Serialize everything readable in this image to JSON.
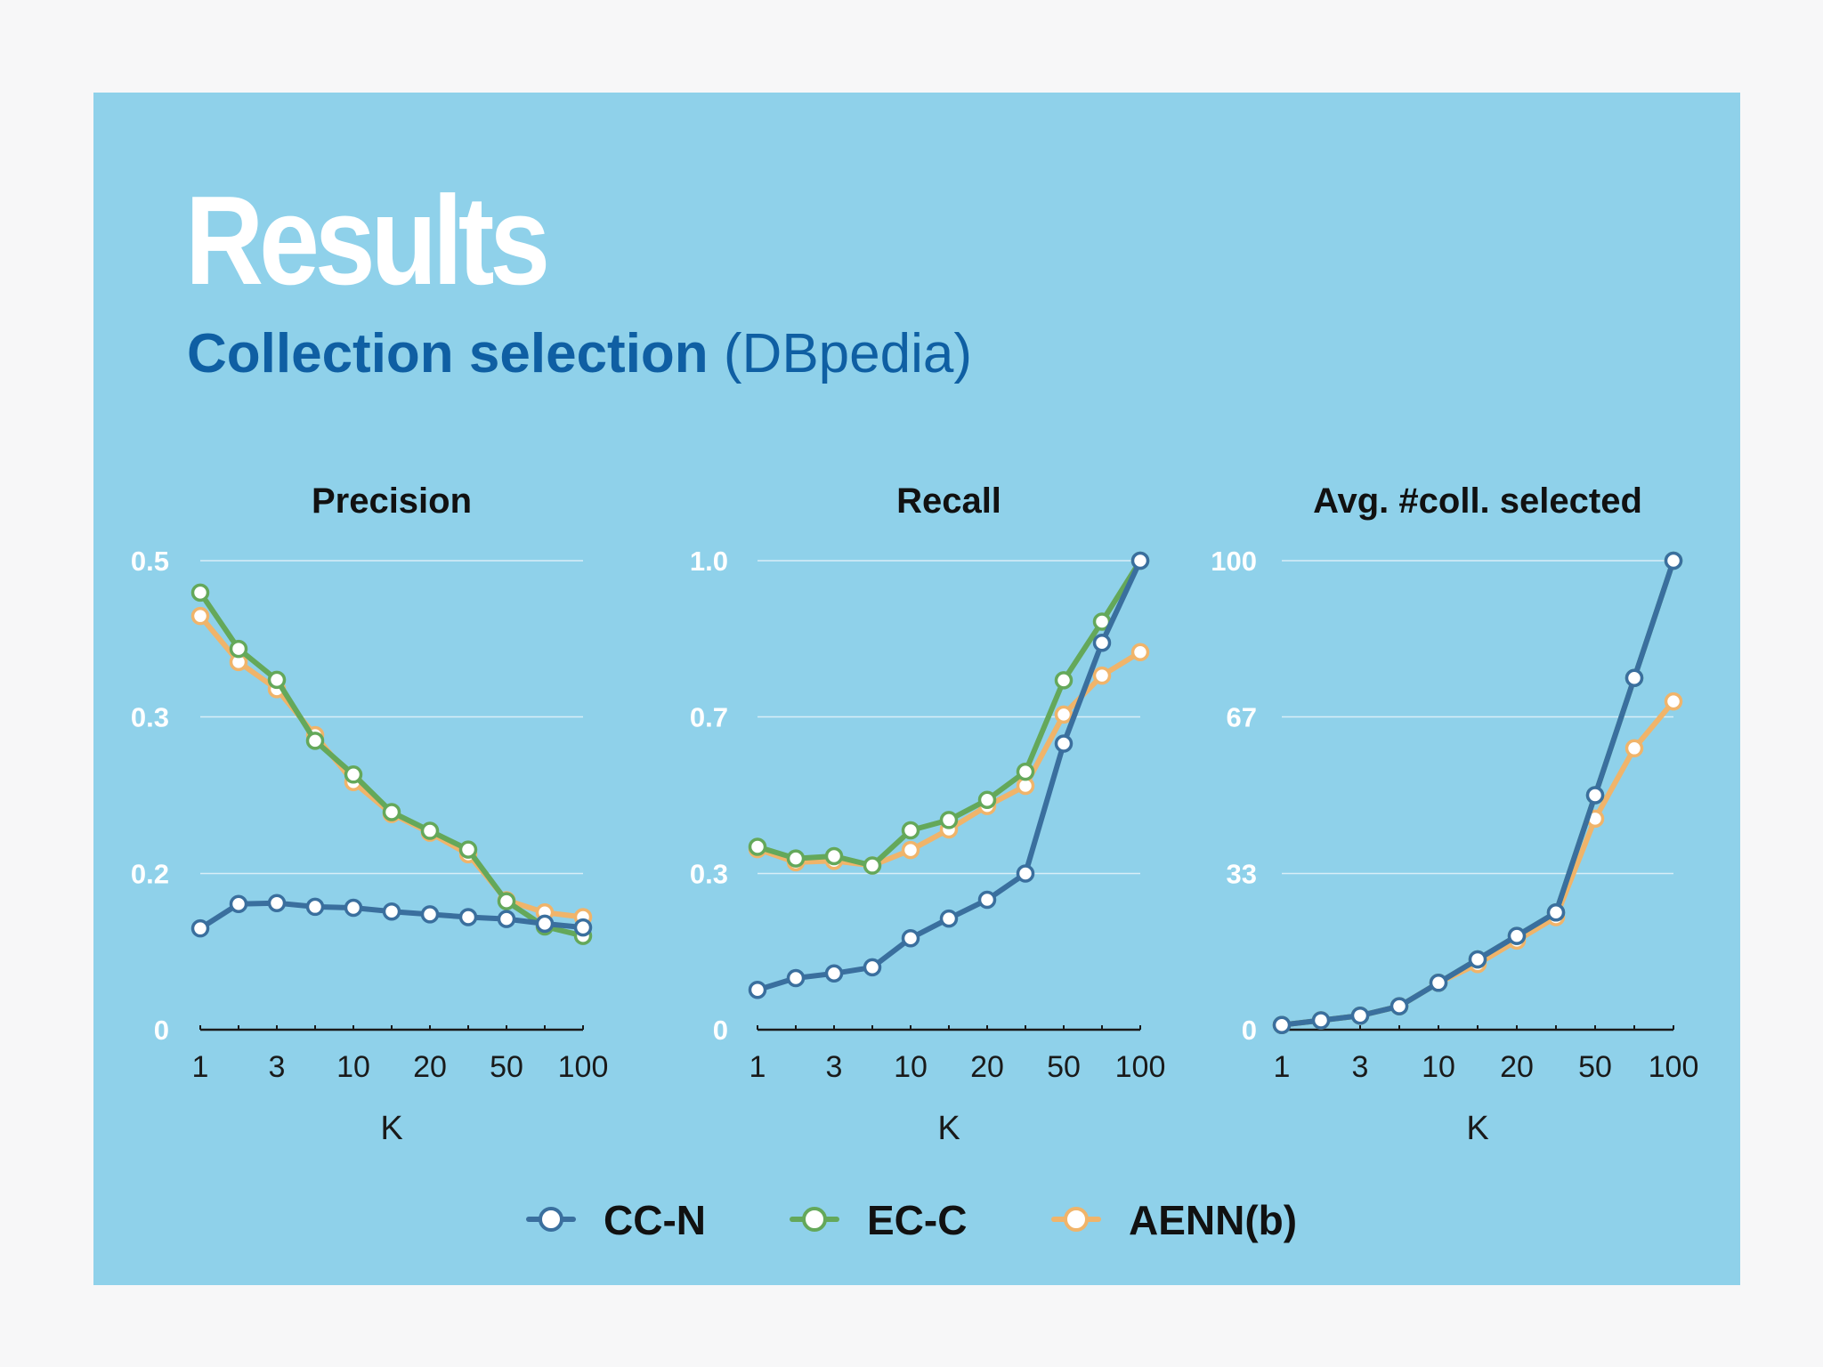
{
  "slide": {
    "title": "Results",
    "subtitle_main": "Collection selection",
    "subtitle_paren": "(DBpedia)"
  },
  "colors": {
    "background": "#8fd1ea",
    "gridline": "#d8eef7",
    "axis_text": "#ffffff",
    "CC-N": "#3a6f9e",
    "EC-C": "#64a85a",
    "AENN(b)": "#f0b46a"
  },
  "legend": [
    {
      "name": "CC-N",
      "color": "#3a6f9e"
    },
    {
      "name": "EC-C",
      "color": "#64a85a"
    },
    {
      "name": "AENN(b)",
      "color": "#f0b46a"
    }
  ],
  "chart_data": [
    {
      "type": "line",
      "title": "Precision",
      "xlabel": "K",
      "ylabel": "",
      "x_tick_labels": [
        "1",
        "3",
        "10",
        "20",
        "50",
        "100"
      ],
      "y_tick_labels": [
        "0",
        "0.2",
        "0.3",
        "0.5"
      ],
      "ylim": [
        0,
        0.5
      ],
      "grid": true,
      "series": [
        {
          "name": "CC-N",
          "values": [
            0.108,
            0.134,
            0.135,
            0.131,
            0.13,
            0.126,
            0.123,
            0.12,
            0.118,
            0.113,
            0.109
          ]
        },
        {
          "name": "EC-C",
          "values": [
            0.466,
            0.406,
            0.373,
            0.308,
            0.272,
            0.232,
            0.212,
            0.192,
            0.137,
            0.11,
            0.1
          ]
        },
        {
          "name": "AENN(b)",
          "values": [
            0.441,
            0.392,
            0.363,
            0.314,
            0.264,
            0.23,
            0.21,
            0.187,
            0.138,
            0.125,
            0.12
          ]
        }
      ]
    },
    {
      "type": "line",
      "title": "Recall",
      "xlabel": "K",
      "ylabel": "",
      "x_tick_labels": [
        "1",
        "3",
        "10",
        "20",
        "50",
        "100"
      ],
      "y_tick_labels": [
        "0",
        "0.3",
        "0.7",
        "1.0"
      ],
      "ylim": [
        0,
        1.0
      ],
      "grid": true,
      "series": [
        {
          "name": "CC-N",
          "values": [
            0.085,
            0.11,
            0.12,
            0.133,
            0.195,
            0.237,
            0.277,
            0.333,
            0.61,
            0.825,
            1.0
          ]
        },
        {
          "name": "EC-C",
          "values": [
            0.39,
            0.365,
            0.37,
            0.35,
            0.425,
            0.447,
            0.49,
            0.55,
            0.745,
            0.87,
            1.0
          ]
        },
        {
          "name": "AENN(b)",
          "values": [
            0.385,
            0.357,
            0.36,
            0.35,
            0.383,
            0.427,
            0.477,
            0.52,
            0.672,
            0.755,
            0.805
          ]
        }
      ]
    },
    {
      "type": "line",
      "title": "Avg. #coll. selected",
      "xlabel": "K",
      "ylabel": "",
      "x_tick_labels": [
        "1",
        "3",
        "10",
        "20",
        "50",
        "100"
      ],
      "y_tick_labels": [
        "0",
        "33",
        "67",
        "100"
      ],
      "ylim": [
        0,
        100
      ],
      "grid": true,
      "series": [
        {
          "name": "CC-N",
          "values": [
            1,
            2,
            3,
            5,
            10,
            15,
            20,
            25,
            50,
            75,
            100
          ]
        },
        {
          "name": "EC-C",
          "values": [
            1,
            2,
            3,
            5,
            10,
            15,
            20,
            25,
            50,
            75,
            100
          ]
        },
        {
          "name": "AENN(b)",
          "values": [
            1,
            2,
            3,
            5,
            10,
            14,
            19,
            24,
            45,
            60,
            70
          ]
        }
      ]
    }
  ]
}
